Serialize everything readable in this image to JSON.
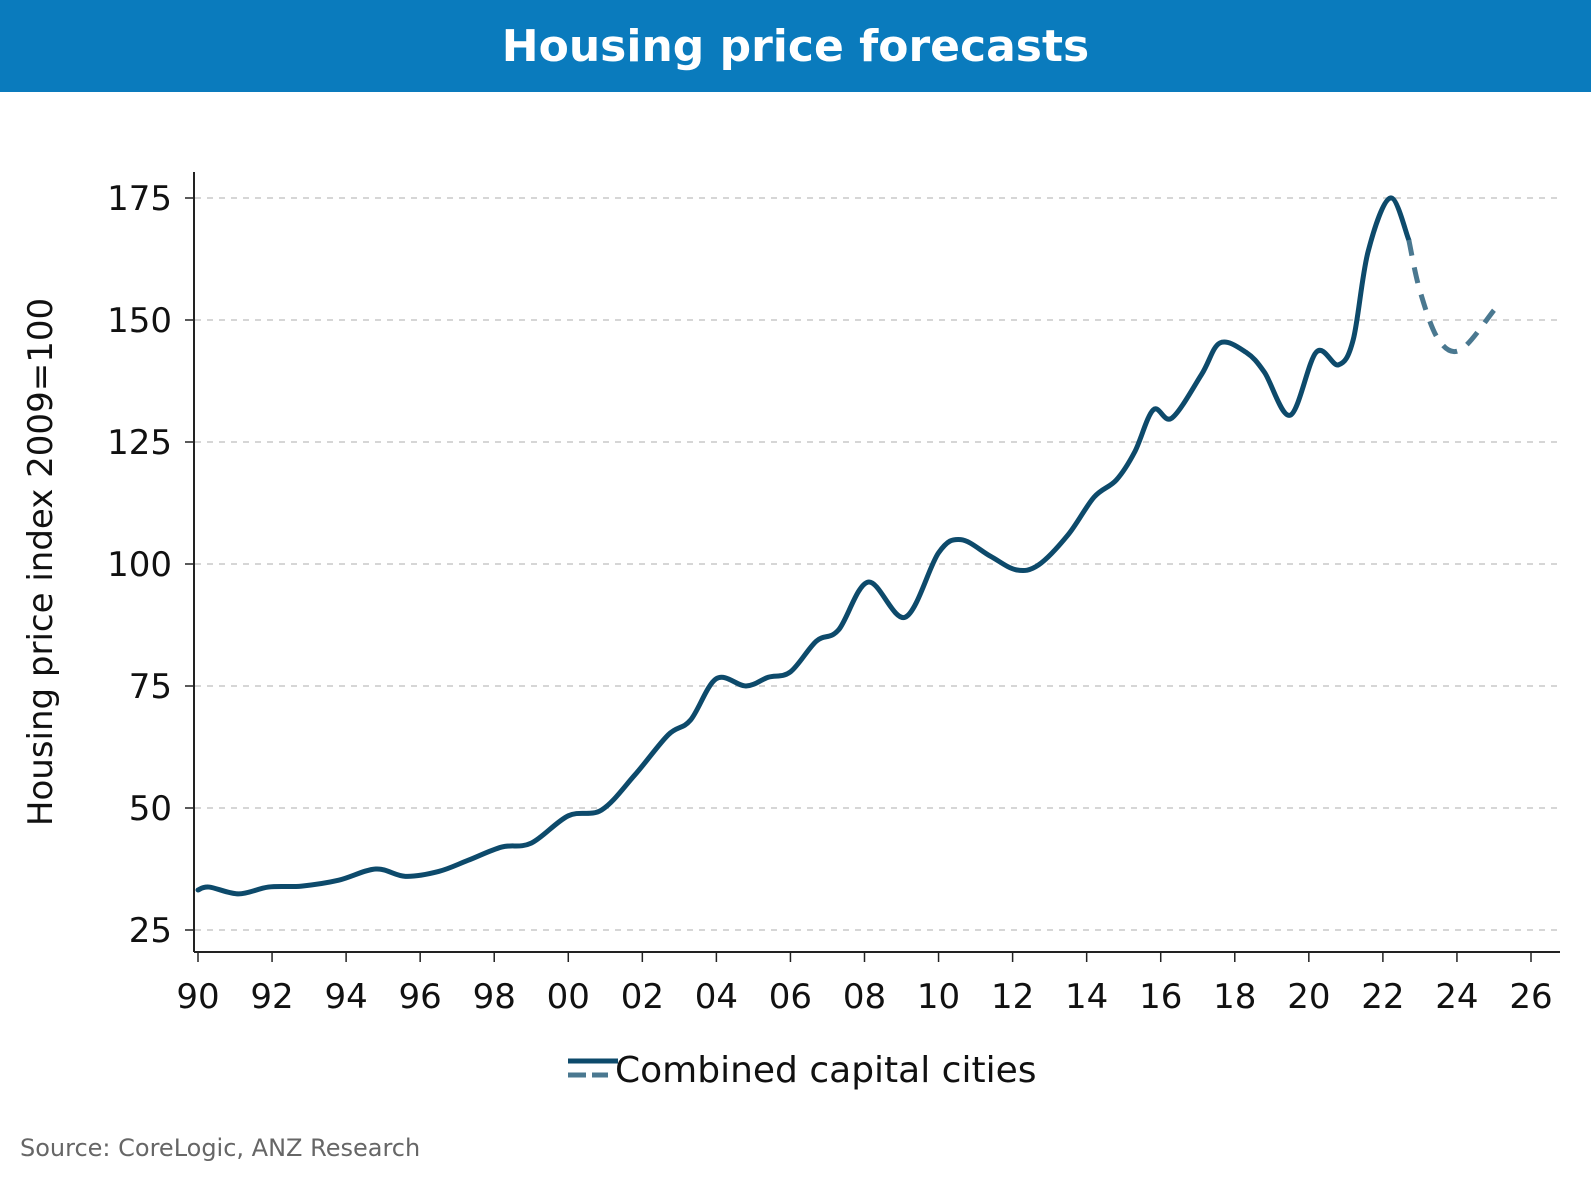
{
  "chart_data": {
    "type": "line",
    "title": "Housing price forecasts",
    "xlabel": "",
    "ylabel": "Housing price index 2009=100",
    "xlim": [
      1990,
      2026
    ],
    "ylim": [
      25,
      175
    ],
    "x_ticks": [
      "90",
      "92",
      "94",
      "96",
      "98",
      "00",
      "02",
      "04",
      "06",
      "08",
      "10",
      "12",
      "14",
      "16",
      "18",
      "20",
      "22",
      "24",
      "26"
    ],
    "y_ticks": [
      "25",
      "50",
      "75",
      "100",
      "125",
      "150",
      "175"
    ],
    "grid": "horizontal dashed",
    "legend": "bottom",
    "series": [
      {
        "name": "Combined capital cities",
        "color": "#0d4a6b",
        "forecast_color": "#4a7890",
        "actual": [
          [
            1990.0,
            33.2
          ],
          [
            1990.3,
            33.8
          ],
          [
            1991.1,
            32.4
          ],
          [
            1991.9,
            33.8
          ],
          [
            1992.8,
            34.0
          ],
          [
            1993.8,
            35.2
          ],
          [
            1994.8,
            37.5
          ],
          [
            1995.6,
            36.0
          ],
          [
            1996.5,
            37.0
          ],
          [
            1997.3,
            39.3
          ],
          [
            1998.2,
            42.0
          ],
          [
            1999.0,
            42.8
          ],
          [
            2000.0,
            48.4
          ],
          [
            2000.9,
            49.6
          ],
          [
            2001.8,
            56.8
          ],
          [
            2002.7,
            65.0
          ],
          [
            2003.3,
            68.0
          ],
          [
            2004.0,
            76.5
          ],
          [
            2004.8,
            75.0
          ],
          [
            2005.4,
            76.8
          ],
          [
            2006.0,
            77.9
          ],
          [
            2006.7,
            84.2
          ],
          [
            2007.3,
            86.5
          ],
          [
            2008.1,
            96.3
          ],
          [
            2009.1,
            89.1
          ],
          [
            2010.0,
            102.3
          ],
          [
            2010.6,
            105.0
          ],
          [
            2011.4,
            101.6
          ],
          [
            2012.1,
            98.8
          ],
          [
            2012.7,
            99.8
          ],
          [
            2013.5,
            106.0
          ],
          [
            2014.2,
            113.7
          ],
          [
            2014.8,
            117.2
          ],
          [
            2015.3,
            123.0
          ],
          [
            2015.8,
            131.6
          ],
          [
            2016.3,
            129.9
          ],
          [
            2017.1,
            138.8
          ],
          [
            2017.6,
            145.3
          ],
          [
            2018.3,
            143.4
          ],
          [
            2018.8,
            139.3
          ],
          [
            2019.5,
            130.5
          ],
          [
            2020.2,
            143.4
          ],
          [
            2020.8,
            140.8
          ],
          [
            2021.2,
            146.0
          ],
          [
            2021.6,
            164.0
          ],
          [
            2022.2,
            175.0
          ],
          [
            2022.7,
            166.4
          ]
        ],
        "forecast": [
          [
            2022.7,
            166.4
          ],
          [
            2023.0,
            156.0
          ],
          [
            2023.5,
            146.0
          ],
          [
            2024.1,
            143.9
          ],
          [
            2025.0,
            152.0
          ]
        ]
      }
    ]
  },
  "source": "Source: CoreLogic, ANZ Research"
}
